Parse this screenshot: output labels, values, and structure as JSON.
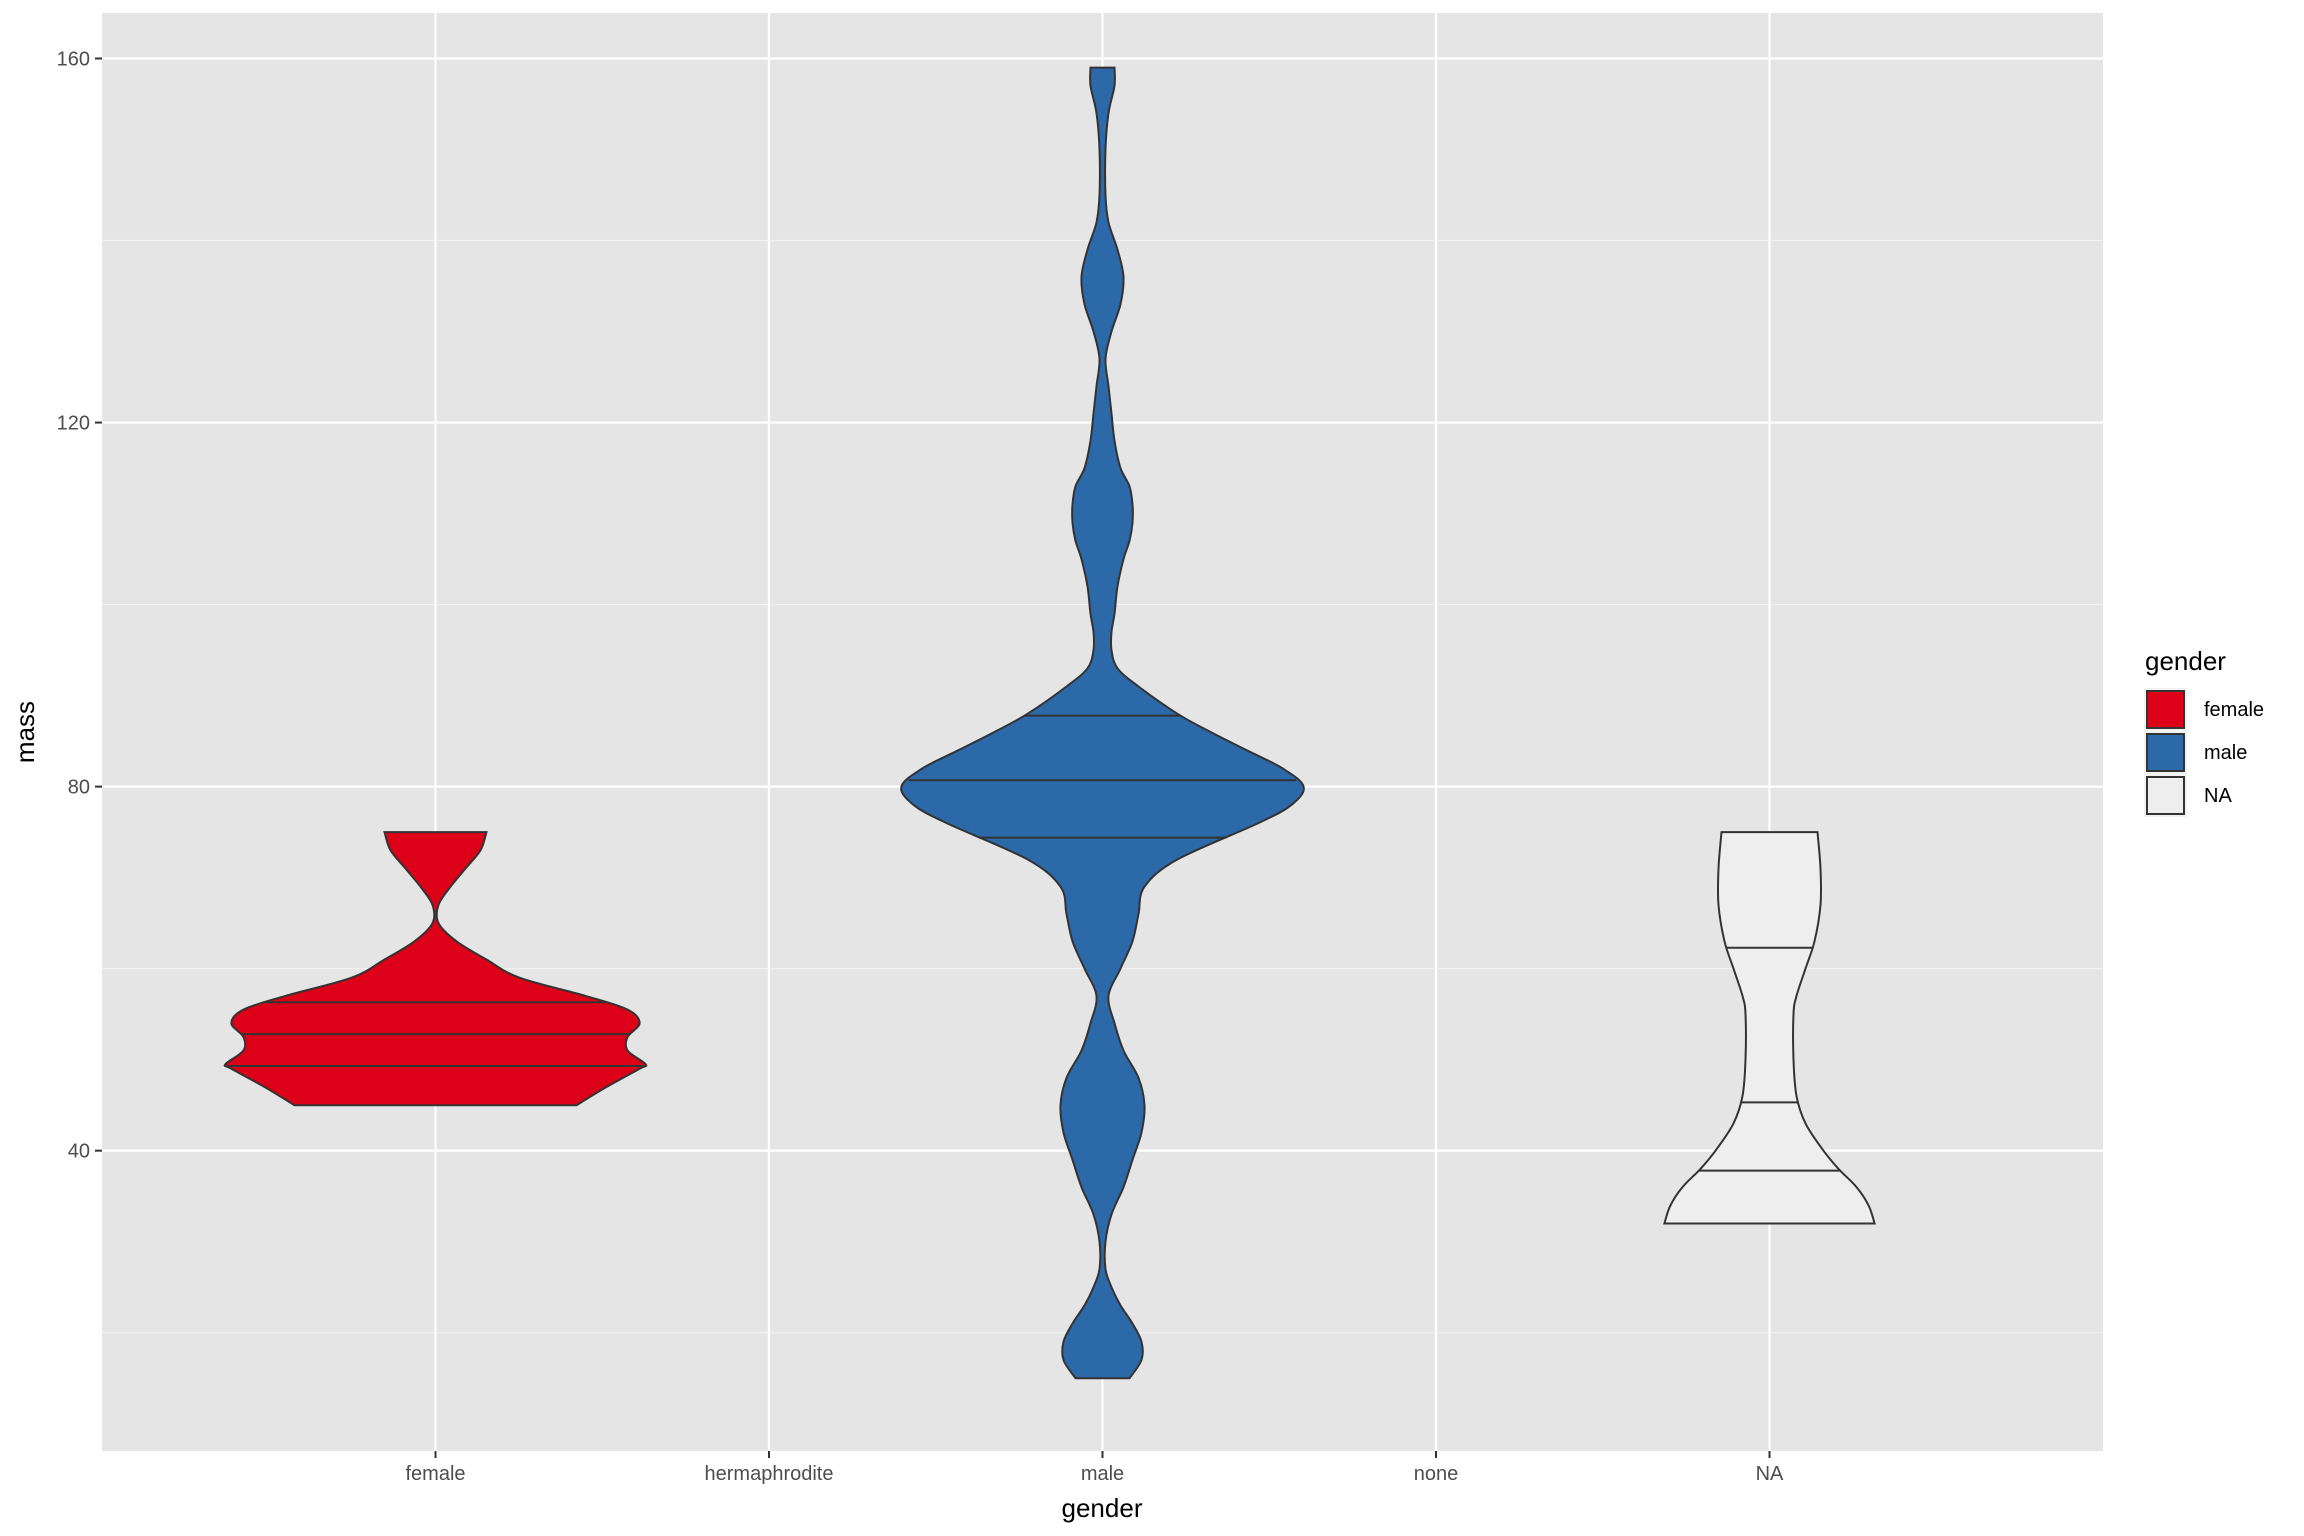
{
  "chart_data": {
    "type": "violin",
    "xlabel": "gender",
    "ylabel": "mass",
    "categories": [
      "female",
      "hermaphrodite",
      "male",
      "none",
      "NA"
    ],
    "ylim": [
      7,
      165
    ],
    "yticks": [
      40,
      80,
      120,
      160
    ],
    "grid": true,
    "legend": {
      "title": "gender",
      "placement": "right",
      "entries": [
        {
          "label": "female",
          "color": "#DC0018"
        },
        {
          "label": "male",
          "color": "#2C69A9"
        },
        {
          "label": "NA",
          "color": "#EEEEEE"
        }
      ]
    },
    "series": [
      {
        "category": "female",
        "fill": "#DC0018",
        "quantiles": [
          49.3,
          52.8,
          56.3
        ],
        "density": [
          [
            45,
            0.47
          ],
          [
            47,
            0.57
          ],
          [
            49,
            0.68
          ],
          [
            49.5,
            0.7
          ],
          [
            51,
            0.64
          ],
          [
            52.5,
            0.64
          ],
          [
            54,
            0.68
          ],
          [
            55.5,
            0.64
          ],
          [
            57,
            0.5
          ],
          [
            59,
            0.28
          ],
          [
            61,
            0.17
          ],
          [
            63,
            0.07
          ],
          [
            65,
            0.01
          ],
          [
            67,
            0.01
          ],
          [
            69,
            0.05
          ],
          [
            71,
            0.1
          ],
          [
            73,
            0.15
          ],
          [
            75,
            0.17
          ]
        ]
      },
      {
        "category": "male",
        "fill": "#2C69A9",
        "quantiles": [
          74.4,
          80.7,
          87.8
        ],
        "density": [
          [
            15,
            0.09
          ],
          [
            17,
            0.13
          ],
          [
            19,
            0.13
          ],
          [
            21,
            0.1
          ],
          [
            23,
            0.06
          ],
          [
            25,
            0.03
          ],
          [
            27,
            0.01
          ],
          [
            30,
            0.01
          ],
          [
            33,
            0.03
          ],
          [
            36,
            0.07
          ],
          [
            39,
            0.1
          ],
          [
            42,
            0.13
          ],
          [
            45,
            0.14
          ],
          [
            48,
            0.12
          ],
          [
            51,
            0.07
          ],
          [
            54,
            0.04
          ],
          [
            57,
            0.02
          ],
          [
            60,
            0.06
          ],
          [
            63,
            0.1
          ],
          [
            66,
            0.12
          ],
          [
            69,
            0.14
          ],
          [
            72,
            0.25
          ],
          [
            76,
            0.52
          ],
          [
            78,
            0.63
          ],
          [
            80,
            0.67
          ],
          [
            82,
            0.6
          ],
          [
            84,
            0.48
          ],
          [
            86,
            0.36
          ],
          [
            88,
            0.25
          ],
          [
            91,
            0.12
          ],
          [
            93,
            0.05
          ],
          [
            95,
            0.03
          ],
          [
            97,
            0.03
          ],
          [
            99,
            0.04
          ],
          [
            102,
            0.05
          ],
          [
            105,
            0.07
          ],
          [
            107,
            0.09
          ],
          [
            109,
            0.1
          ],
          [
            111,
            0.1
          ],
          [
            113,
            0.09
          ],
          [
            115,
            0.06
          ],
          [
            118,
            0.04
          ],
          [
            121,
            0.03
          ],
          [
            124,
            0.02
          ],
          [
            127,
            0.01
          ],
          [
            130,
            0.03
          ],
          [
            133,
            0.06
          ],
          [
            136,
            0.07
          ],
          [
            139,
            0.05
          ],
          [
            142,
            0.02
          ],
          [
            145,
            0.01
          ],
          [
            150,
            0.01
          ],
          [
            154,
            0.02
          ],
          [
            157,
            0.04
          ],
          [
            159,
            0.04
          ]
        ]
      },
      {
        "category": "NA",
        "fill": "#EEEEEE",
        "quantiles": [
          37.8,
          45.3,
          62.3
        ],
        "density": [
          [
            32,
            0.35
          ],
          [
            34,
            0.33
          ],
          [
            36,
            0.29
          ],
          [
            38,
            0.23
          ],
          [
            40,
            0.18
          ],
          [
            43,
            0.12
          ],
          [
            46,
            0.09
          ],
          [
            50,
            0.08
          ],
          [
            55,
            0.08
          ],
          [
            57,
            0.09
          ],
          [
            60,
            0.12
          ],
          [
            63,
            0.15
          ],
          [
            67,
            0.17
          ],
          [
            71,
            0.17
          ],
          [
            75,
            0.16
          ]
        ]
      }
    ]
  }
}
